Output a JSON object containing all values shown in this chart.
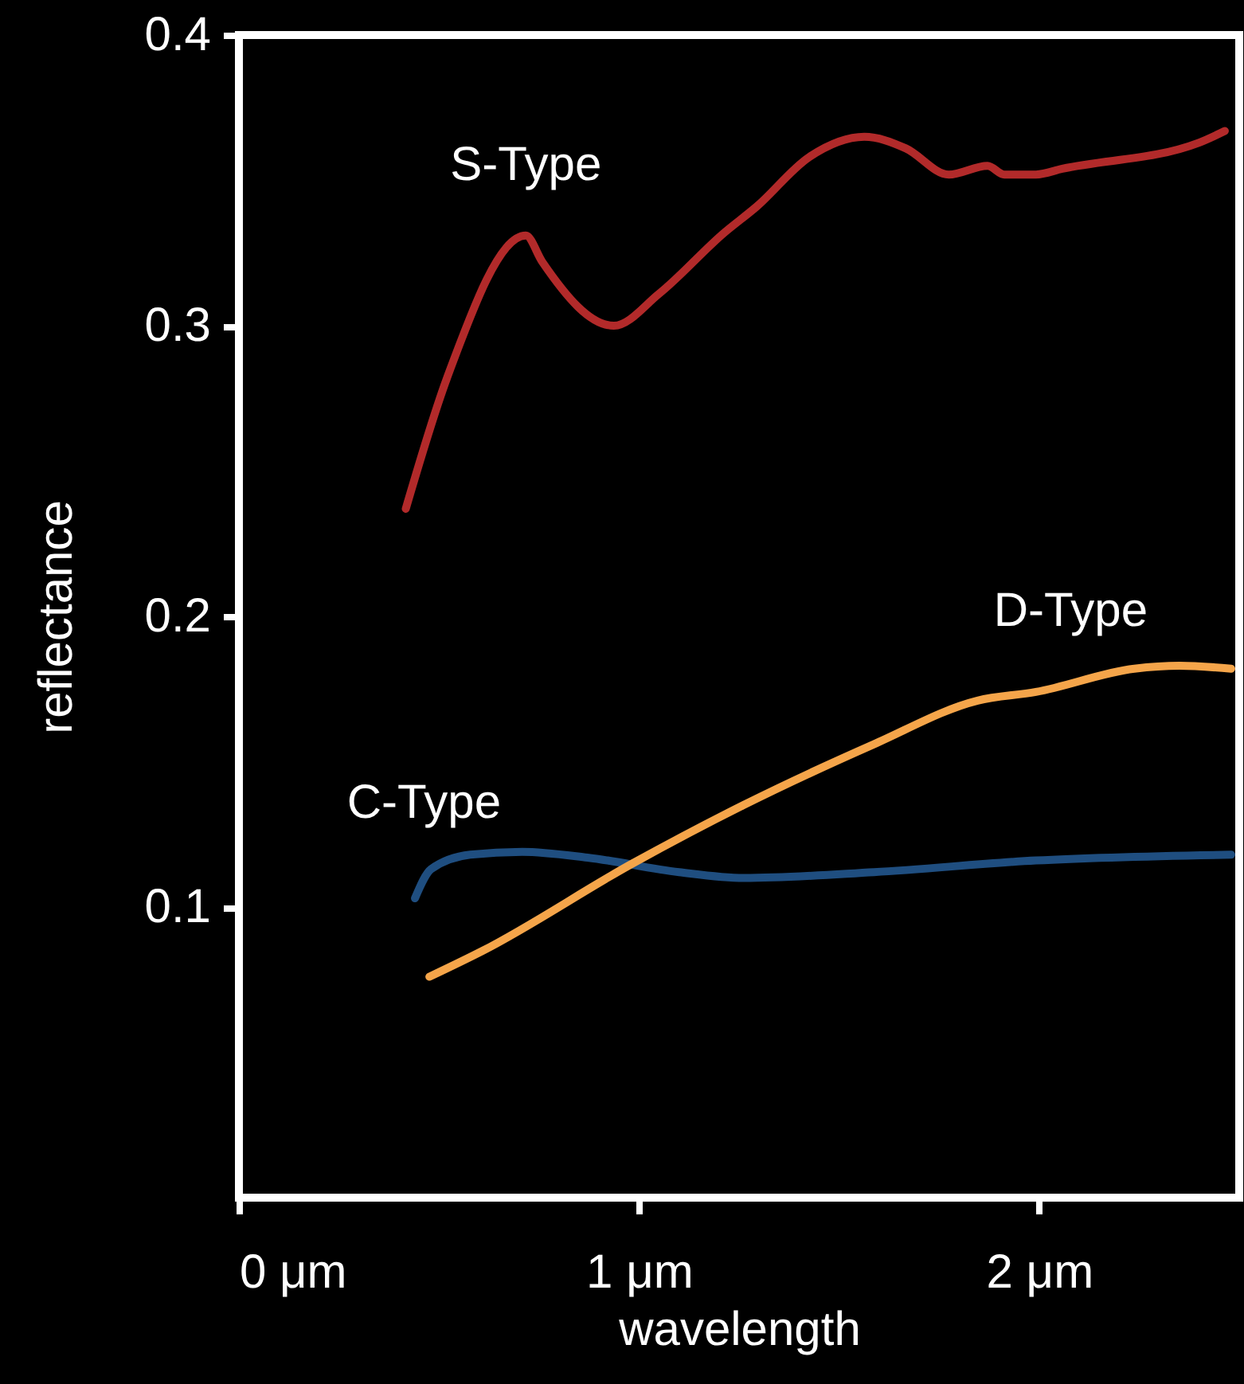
{
  "chart_data": {
    "type": "line",
    "xlabel": "wavelength",
    "ylabel": "reflectance",
    "xlim": [
      0,
      2.5
    ],
    "ylim": [
      0,
      0.4
    ],
    "xticks": [
      {
        "value": 0,
        "label": "0 μm"
      },
      {
        "value": 1,
        "label": "1 μm"
      },
      {
        "value": 2,
        "label": "2 μm"
      }
    ],
    "yticks": [
      0.1,
      0.2,
      0.3,
      0.4
    ],
    "grid": false,
    "marker": "none",
    "line_style": "solid",
    "series": [
      {
        "name": "S-Type",
        "color": "#b22a2a",
        "x": [
          0.417,
          0.52,
          0.717,
          0.758,
          0.937,
          1.05,
          1.213,
          1.294,
          1.425,
          1.563,
          1.667,
          1.774,
          1.871,
          1.913,
          1.992,
          2.058,
          2.4,
          2.464
        ],
        "values": [
          0.237,
          0.282,
          0.331,
          0.322,
          0.3,
          0.311,
          0.332,
          0.341,
          0.358,
          0.365,
          0.361,
          0.352,
          0.355,
          0.352,
          0.352,
          0.354,
          0.363,
          0.367
        ]
      },
      {
        "name": "C-Type",
        "color": "#1f4e80",
        "x": [
          0.44,
          0.48,
          0.578,
          0.708,
          0.871,
          1.1,
          1.262,
          1.587,
          1.992,
          2.48
        ],
        "values": [
          0.103,
          0.113,
          0.118,
          0.119,
          0.117,
          0.112,
          0.11,
          0.112,
          0.116,
          0.118
        ]
      },
      {
        "name": "D-Type",
        "color": "#f5a54a",
        "x": [
          0.476,
          0.61,
          0.984,
          1.26,
          1.587,
          1.846,
          1.992,
          2.238,
          2.351,
          2.48
        ],
        "values": [
          0.076,
          0.085,
          0.115,
          0.135,
          0.156,
          0.171,
          0.174,
          0.182,
          0.183,
          0.182
        ]
      }
    ]
  }
}
